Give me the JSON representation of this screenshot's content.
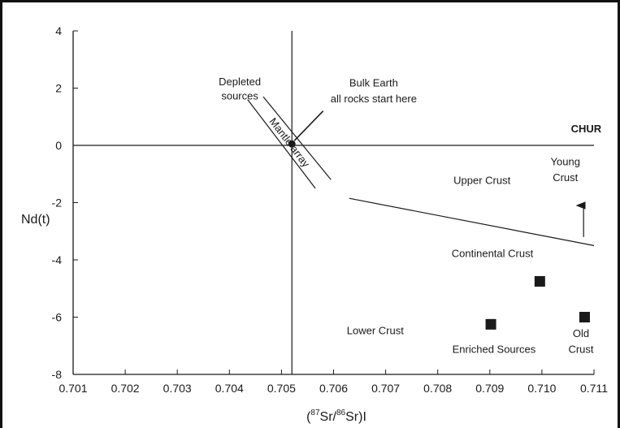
{
  "chart_data": {
    "type": "scatter",
    "title": "",
    "xlabel": "(87Sr/86Sr)I",
    "xlabel_parts": {
      "open": "(",
      "sup1": "87",
      "mid": "Sr/",
      "sup2": "86",
      "close": "Sr)I"
    },
    "ylabel": "Nd(t)",
    "xlim": [
      0.701,
      0.711
    ],
    "ylim": [
      -8,
      4
    ],
    "x_ticks": [
      "0.701",
      "0.702",
      "0.703",
      "0.704",
      "0.705",
      "0.706",
      "0.707",
      "0.708",
      "0.709",
      "0.710",
      "0.711"
    ],
    "x_tick_values": [
      0.701,
      0.702,
      0.703,
      0.704,
      0.705,
      0.706,
      0.707,
      0.708,
      0.709,
      0.71,
      0.711
    ],
    "y_ticks": [
      "4",
      "2",
      "0",
      "-2",
      "-4",
      "-6",
      "-8"
    ],
    "y_tick_values": [
      4,
      2,
      0,
      -2,
      -4,
      -6,
      -8
    ],
    "grid": false,
    "reference_lines": {
      "chur_y": 0,
      "bulk_earth_x": 0.7052
    },
    "bulk_earth_point": {
      "x": 0.7052,
      "y": 0.05
    },
    "mantle_array": {
      "lines": [
        {
          "x1": 0.70435,
          "y1": 1.6,
          "x2": 0.70565,
          "y2": -1.5
        },
        {
          "x1": 0.70465,
          "y1": 1.7,
          "x2": 0.70595,
          "y2": -1.2
        }
      ],
      "label": "Mantle array"
    },
    "crust_boundary": {
      "x1": 0.7063,
      "y1": -1.85,
      "x2": 0.711,
      "y2": -3.5
    },
    "arrow": {
      "x": 0.7108,
      "y_from": -3.2,
      "y_to": -2.1
    },
    "series": [
      {
        "marker": "square",
        "points": [
          [
            0.70902,
            -6.25
          ],
          [
            0.70996,
            -4.75
          ],
          [
            0.71082,
            -6.0
          ]
        ]
      }
    ],
    "annotations": [
      {
        "id": "depleted-1",
        "text": "Depleted",
        "x": 0.7042,
        "y": 2.1
      },
      {
        "id": "depleted-2",
        "text": "sources",
        "x": 0.7042,
        "y": 1.6
      },
      {
        "id": "bulk-1",
        "text": "Bulk Earth",
        "x": 0.70677,
        "y": 2.05
      },
      {
        "id": "bulk-2",
        "text": "all rocks start here",
        "x": 0.70677,
        "y": 1.5
      },
      {
        "id": "chur",
        "text": "CHUR",
        "x": 0.71085,
        "y": 0.45
      },
      {
        "id": "young-1",
        "text": "Young",
        "x": 0.71045,
        "y": -0.7
      },
      {
        "id": "young-2",
        "text": "Crust",
        "x": 0.71045,
        "y": -1.25
      },
      {
        "id": "upper",
        "text": "Upper Crust",
        "x": 0.70885,
        "y": -1.35
      },
      {
        "id": "continental",
        "text": "Continental Crust",
        "x": 0.70905,
        "y": -3.9
      },
      {
        "id": "lower",
        "text": "Lower Crust",
        "x": 0.7068,
        "y": -6.6
      },
      {
        "id": "old-1",
        "text": "Old",
        "x": 0.71075,
        "y": -6.7
      },
      {
        "id": "old-2",
        "text": "Crust",
        "x": 0.71075,
        "y": -7.25
      },
      {
        "id": "enriched",
        "text": "Enriched Sources",
        "x": 0.70908,
        "y": -7.25
      }
    ],
    "colors": {
      "ink": "#1a1a1a",
      "background": "#ffffff"
    }
  }
}
